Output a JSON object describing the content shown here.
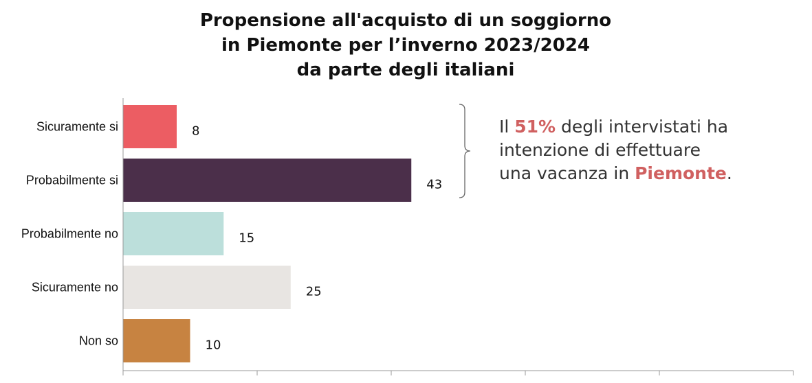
{
  "title_lines": [
    "Propensione all'acquisto di un soggiorno",
    "in Piemonte per l’inverno 2023/2024",
    "da parte degli italiani"
  ],
  "chart_data": {
    "type": "bar",
    "orientation": "horizontal",
    "categories": [
      "Sicuramente si",
      "Probabilmente si",
      "Probabilmente no",
      "Sicuramente no",
      "Non so"
    ],
    "values": [
      8,
      43,
      15,
      25,
      10
    ],
    "colors": [
      "#ec5d63",
      "#4b2f4a",
      "#bcdfdb",
      "#e8e5e2",
      "#c78341"
    ],
    "xlim": [
      0,
      100
    ],
    "grid": false
  },
  "callout": {
    "line1_pre": "Il ",
    "percent": "51%",
    "line1_post": " degli intervistati ha",
    "line2": "intenzione di effettuare",
    "line3_pre": "una vacanza in ",
    "region": "Piemonte",
    "line3_post": ".",
    "highlight_color": "#d06060"
  }
}
